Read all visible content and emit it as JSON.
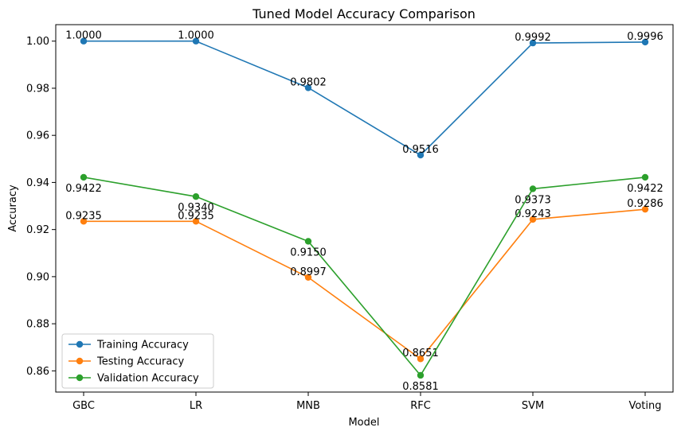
{
  "chart_data": {
    "type": "line",
    "title": "Tuned Model Accuracy Comparison",
    "xlabel": "Model",
    "ylabel": "Accuracy",
    "categories": [
      "GBC",
      "LR",
      "MNB",
      "RFC",
      "SVM",
      "Voting"
    ],
    "ylim": [
      0.851,
      1.007
    ],
    "yticks": [
      "0.86",
      "0.88",
      "0.90",
      "0.92",
      "0.94",
      "0.96",
      "0.98",
      "1.00"
    ],
    "grid": false,
    "legend_position": "lower-left",
    "series": [
      {
        "name": "Training Accuracy",
        "color": "#1f77b4",
        "values": [
          1.0,
          1.0,
          0.9802,
          0.9516,
          0.9992,
          0.9996
        ],
        "labels": [
          "1.0000",
          "1.0000",
          "0.9802",
          "0.9516",
          "0.9992",
          "0.9996"
        ],
        "label_position": "above"
      },
      {
        "name": "Testing Accuracy",
        "color": "#ff7f0e",
        "values": [
          0.9235,
          0.9235,
          0.8997,
          0.8651,
          0.9243,
          0.9286
        ],
        "labels": [
          "0.9235",
          "0.9235",
          "0.8997",
          "0.8651",
          "0.9243",
          "0.9286"
        ],
        "label_position": "above"
      },
      {
        "name": "Validation Accuracy",
        "color": "#2ca02c",
        "values": [
          0.9422,
          0.934,
          0.915,
          0.8581,
          0.9373,
          0.9422
        ],
        "labels": [
          "0.9422",
          "0.9340",
          "0.9150",
          "0.8581",
          "0.9373",
          "0.9422"
        ],
        "label_position": "below"
      }
    ]
  }
}
